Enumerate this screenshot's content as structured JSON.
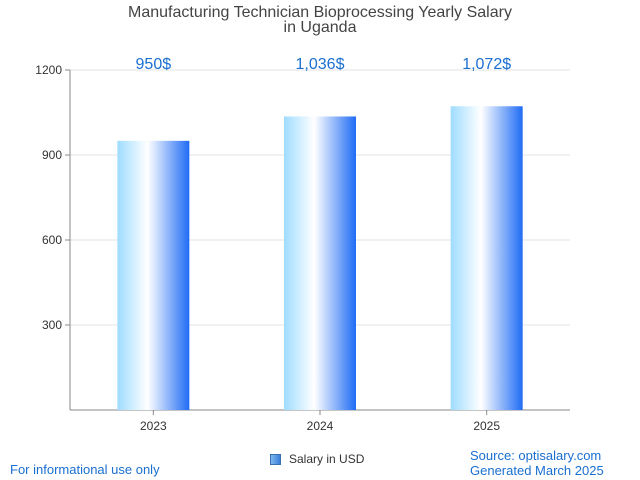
{
  "chart_data": {
    "type": "bar",
    "title_lines": [
      "Manufacturing Technician Bioprocessing Yearly Salary",
      "in Uganda"
    ],
    "categories": [
      "2023",
      "2024",
      "2025"
    ],
    "values": [
      950,
      1036,
      1072
    ],
    "value_labels": [
      "950$",
      "1,036$",
      "1,072$"
    ],
    "ylim": [
      0,
      1200
    ],
    "yticks": [
      300,
      600,
      900,
      1200
    ],
    "grid": true,
    "series": [
      {
        "name": "Salary in USD",
        "values": [
          950,
          1036,
          1072
        ]
      }
    ],
    "legend_position": "bottom-center",
    "colors": {
      "bar_light": "#ffffff",
      "bar_mid": "#9fdcff",
      "bar_dark": "#1f6cf5",
      "value_label": "#1a6fd1",
      "grid": "#e3e3e3",
      "axis": "#888888"
    }
  },
  "footer": {
    "disclaimer": "For informational use only",
    "source": "Source: optisalary.com",
    "generated": "Generated March 2025"
  }
}
